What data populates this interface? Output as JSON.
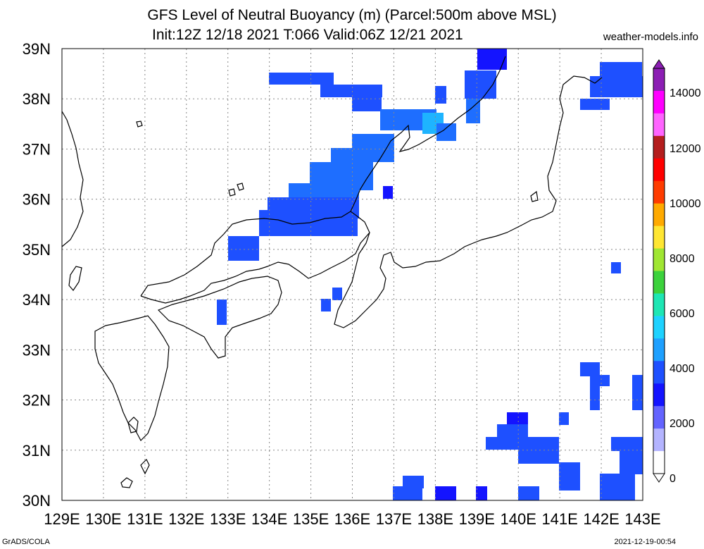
{
  "title": {
    "line1": "GFS Level of Neutral Buoyancy (m) (Parcel:500m above MSL)",
    "line2": "Init:12Z 12/18 2021 T:066 Valid:06Z 12/21 2021"
  },
  "site": "weather-models.info",
  "footer": {
    "credit": "GrADS/COLA",
    "timestamp": "2021-12-19-00:54"
  },
  "map": {
    "lon_labels": [
      "129E",
      "130E",
      "131E",
      "132E",
      "133E",
      "134E",
      "135E",
      "136E",
      "137E",
      "138E",
      "139E",
      "140E",
      "141E",
      "142E",
      "143E"
    ],
    "lat_labels": [
      "39N",
      "38N",
      "37N",
      "36N",
      "35N",
      "34N",
      "33N",
      "32N",
      "31N",
      "30N"
    ]
  },
  "colorbar": {
    "labels": [
      "14000",
      "12000",
      "10000",
      "8000",
      "6000",
      "4000",
      "2000",
      "0"
    ],
    "colors": {
      "blue_dark": "#1414ff",
      "blue": "#1e50ff",
      "blue_mid": "#1e6eff",
      "cyan": "#1ed2ff",
      "green": "#3cd23c",
      "yellow": "#ffe632",
      "orange": "#ffaa00",
      "red": "#ff3c00",
      "darkred": "#b41e1e",
      "magenta": "#ff00ff",
      "purple": "#8c1eb4"
    }
  }
}
